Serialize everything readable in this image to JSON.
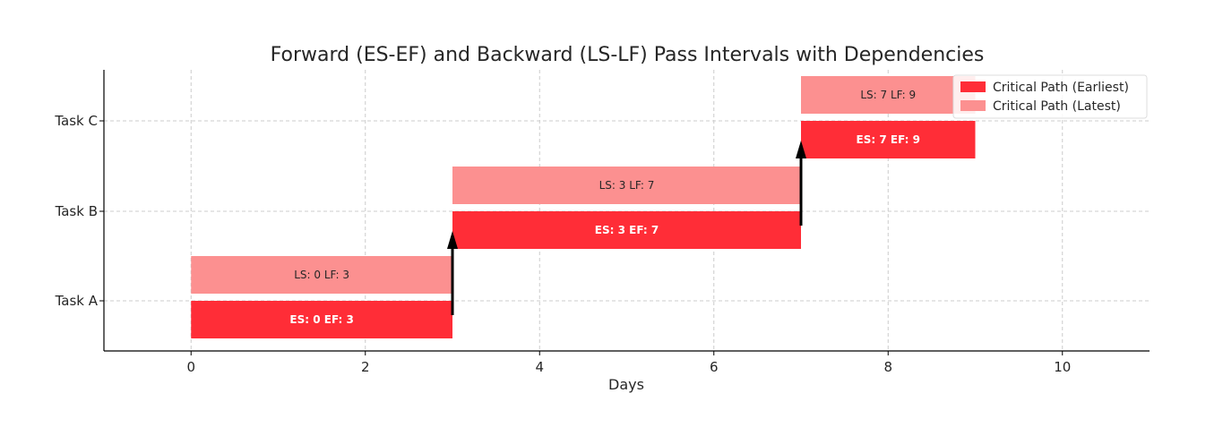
{
  "chart_data": {
    "type": "bar",
    "orientation": "horizontal",
    "title": "Forward (ES-EF) and Backward (LS-LF) Pass Intervals with Dependencies",
    "xlabel": "Days",
    "ylabel": "",
    "xlim": [
      -1,
      11
    ],
    "xticks": [
      0,
      2,
      4,
      6,
      8,
      10
    ],
    "grid": true,
    "legend_position": "top-right",
    "categories": [
      "Task A",
      "Task B",
      "Task C"
    ],
    "series": [
      {
        "name": "Critical Path (Earliest)",
        "color": "#ff2d37",
        "bars": [
          {
            "task": "Task A",
            "start": 0,
            "end": 3,
            "label": "ES: 0 EF: 3"
          },
          {
            "task": "Task B",
            "start": 3,
            "end": 7,
            "label": "ES: 3 EF: 7"
          },
          {
            "task": "Task C",
            "start": 7,
            "end": 9,
            "label": "ES: 7 EF: 9"
          }
        ]
      },
      {
        "name": "Critical Path (Latest)",
        "color": "#fc9090",
        "bars": [
          {
            "task": "Task A",
            "start": 0,
            "end": 3,
            "label": "LS: 0 LF: 3"
          },
          {
            "task": "Task B",
            "start": 3,
            "end": 7,
            "label": "LS: 3 LF: 7"
          },
          {
            "task": "Task C",
            "start": 7,
            "end": 9,
            "label": "LS: 7 LF: 9"
          }
        ]
      }
    ],
    "dependencies": [
      {
        "from": "Task A",
        "to": "Task B",
        "day": 3
      },
      {
        "from": "Task B",
        "to": "Task C",
        "day": 7
      }
    ]
  }
}
